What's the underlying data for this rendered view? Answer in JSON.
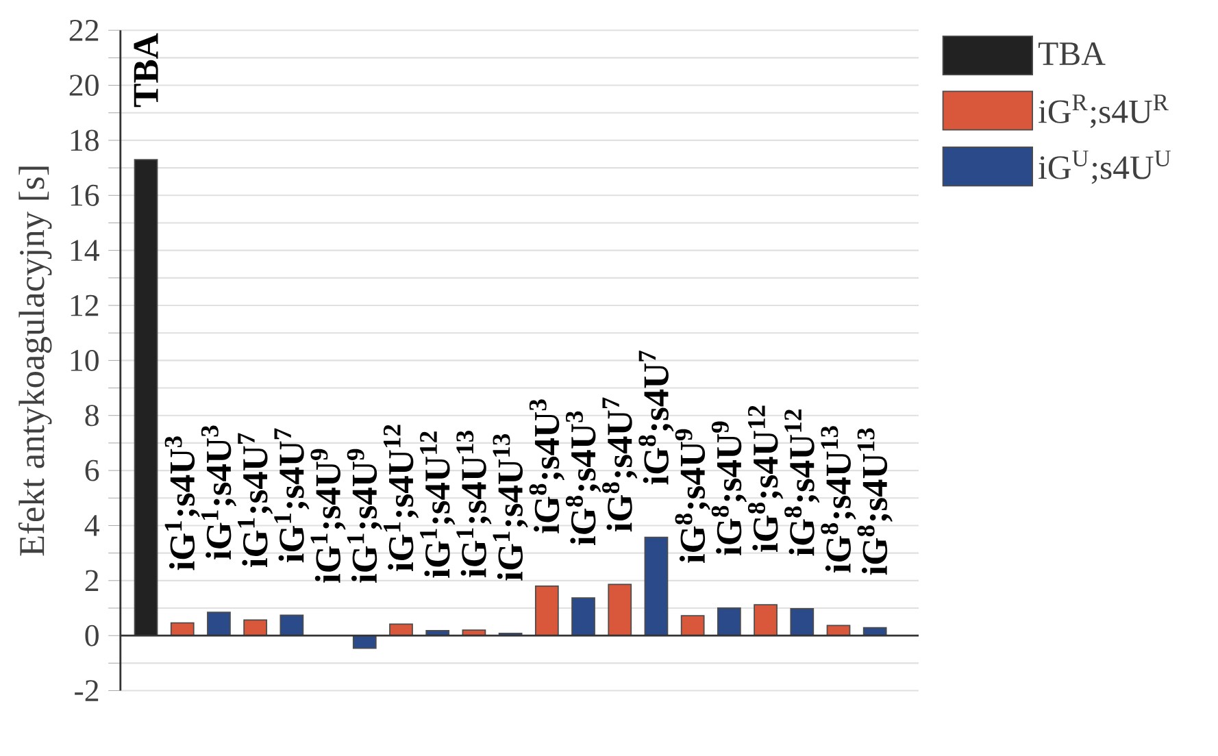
{
  "chart_data": {
    "type": "bar",
    "ylabel": "Efekt antykoagulacyjny [s]",
    "categories": [
      "TBA",
      "iG$^{1}$;s4U$^{3}$",
      "iG$^{1}$;s4U$^{3}$",
      "iG$^{1}$;s4U$^{7}$",
      "iG$^{1}$;s4U$^{7}$",
      "iG$^{1}$;s4U$^{9}$",
      "iG$^{1}$;s4U$^{9}$",
      "iG$^{1}$;s4U$^{12}$",
      "iG$^{1}$;s4U$^{12}$",
      "iG$^{1}$;s4U$^{13}$",
      "iG$^{1}$;s4U$^{13}$",
      "iG$^{8}$;s4U$^{3}$",
      "iG$^{8}$;s4U$^{3}$",
      "iG$^{8}$;s4U$^{7}$",
      "iG$^{8}$;s4U$^{7}$",
      "iG$^{8}$;s4U$^{9}$",
      "iG$^{8}$;s4U$^{9}$",
      "iG$^{8}$;s4U$^{12}$",
      "iG$^{8}$;s4U$^{12}$",
      "iG$^{8}$;s4U$^{13}$",
      "iG$^{8}$;s4U$^{13}$"
    ],
    "series": [
      {
        "name": "TBA",
        "color": "#222222",
        "values": [
          17.3,
          null,
          null,
          null,
          null,
          null,
          null,
          null,
          null,
          null,
          null,
          null,
          null,
          null,
          null,
          null,
          null,
          null,
          null,
          null,
          null
        ]
      },
      {
        "name": "iG$^{R}$;s4U$^{R}$",
        "color": "#d9573a",
        "values": [
          null,
          0.46,
          null,
          0.57,
          null,
          null,
          null,
          0.42,
          null,
          0.2,
          null,
          1.8,
          null,
          1.86,
          null,
          0.72,
          null,
          1.12,
          null,
          0.37,
          null
        ]
      },
      {
        "name": "iG$^{U}$;s4U$^{U}$",
        "color": "#2a4a8a",
        "values": [
          null,
          null,
          0.85,
          null,
          0.74,
          null,
          -0.46,
          null,
          0.18,
          null,
          0.08,
          null,
          1.37,
          null,
          3.57,
          null,
          1.0,
          null,
          0.98,
          null,
          0.29
        ]
      }
    ],
    "ylim": [
      -2,
      22
    ],
    "yticks": [
      -2,
      {
        "value": -1,
        "label": null
      },
      0,
      {
        "value": 1,
        "label": null
      },
      2,
      {
        "value": 3,
        "label": null
      },
      4,
      {
        "value": 5,
        "label": null
      },
      6,
      {
        "value": 7,
        "label": null
      },
      8,
      {
        "value": 9,
        "label": null
      },
      10,
      {
        "value": 11,
        "label": null
      },
      12,
      {
        "value": 13,
        "label": null
      },
      14,
      {
        "value": 15,
        "label": null
      },
      16,
      {
        "value": 17,
        "label": null
      },
      18,
      {
        "value": 19,
        "label": null
      },
      20,
      {
        "value": 21,
        "label": null
      },
      22
    ],
    "grid": "y",
    "legend": "top right"
  }
}
